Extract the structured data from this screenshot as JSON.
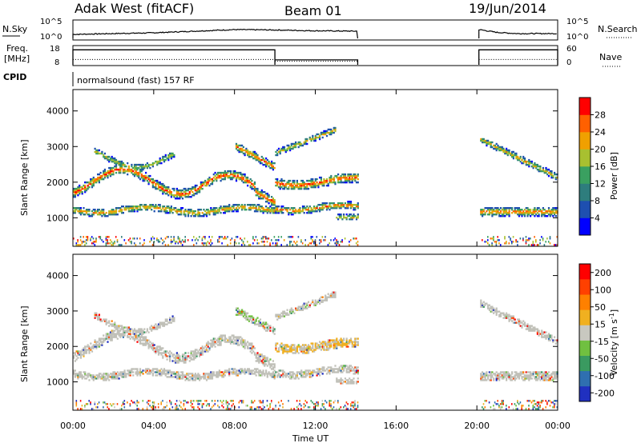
{
  "header": {
    "station": "Adak West (fitACF)",
    "beam": "Beam 01",
    "date": "19/Jun/2014"
  },
  "chart_data": [
    {
      "type": "line",
      "panel": "noise",
      "left_label": "N.Sky",
      "right_label": "N.Search",
      "left_ticks": [
        "10^5",
        "10^0"
      ],
      "right_ticks": [
        "10^5",
        "10^0"
      ],
      "x": [
        0,
        2,
        4,
        6,
        8,
        10,
        12,
        14.1,
        20.1,
        21,
        22,
        23,
        24
      ],
      "values": [
        0.3,
        0.4,
        0.5,
        0.7,
        0.9,
        0.85,
        0.75,
        0.7,
        0.9,
        0.55,
        0.4,
        0.4,
        0.4
      ],
      "gaps": [
        [
          14.1,
          20.1
        ]
      ]
    },
    {
      "type": "line",
      "panel": "frequency",
      "left_label_top": "Freq.",
      "left_label_bottom": "[MHz]",
      "right_label": "Nave",
      "left_ticks": [
        "18",
        "8"
      ],
      "right_ticks": [
        "60",
        "0"
      ],
      "freq_steps": [
        [
          0,
          10,
          16.5
        ],
        [
          10,
          14.1,
          10.8
        ],
        [
          20.1,
          24,
          16.5
        ]
      ],
      "nave_steps": [
        [
          0,
          10,
          18
        ],
        [
          10,
          14.1,
          12
        ],
        [
          20.1,
          24,
          18
        ]
      ]
    },
    {
      "type": "heatmap",
      "panel": "power",
      "cpid_label": "CPID",
      "cpid_text": "normalsound (fast) 157 RF",
      "ylabel": "Slant Range [km]",
      "ylim": [
        200,
        4600
      ],
      "yticks": [
        1000,
        2000,
        3000,
        4000
      ],
      "xlim": [
        0,
        24
      ],
      "colorbar_label": "Power [dB]",
      "colorbar_ticks": [
        "4",
        "8",
        "12",
        "16",
        "20",
        "24",
        "28"
      ],
      "colorbar_colors": [
        "#0000ff",
        "#1e4fb0",
        "#2e7d7d",
        "#3aa060",
        "#a8c030",
        "#f0a000",
        "#ff6000",
        "#ff0000"
      ]
    },
    {
      "type": "heatmap",
      "panel": "velocity",
      "ylabel": "Slant Range [km]",
      "ylim": [
        200,
        4600
      ],
      "yticks": [
        1000,
        2000,
        3000,
        4000
      ],
      "xlim": [
        0,
        24
      ],
      "xlabel": "Time UT",
      "xtick_labels": [
        "00:00",
        "04:00",
        "08:00",
        "12:00",
        "16:00",
        "20:00",
        "00:00"
      ],
      "colorbar_label_main": "Velocity [m s",
      "colorbar_label_exp": "-1",
      "colorbar_label_end": "]",
      "colorbar_ticks": [
        "200",
        "100",
        "50",
        "15",
        "-15",
        "-50",
        "-100",
        "-200"
      ],
      "colorbar_colors": [
        "#2030c0",
        "#2f6fb0",
        "#3a9a60",
        "#70c040",
        "#c8c8c0",
        "#f0b020",
        "#ff8000",
        "#ff4000",
        "#ff0000"
      ]
    }
  ],
  "colors": {
    "ground_scatter": "#c0c0b8",
    "ink": "#000000"
  }
}
